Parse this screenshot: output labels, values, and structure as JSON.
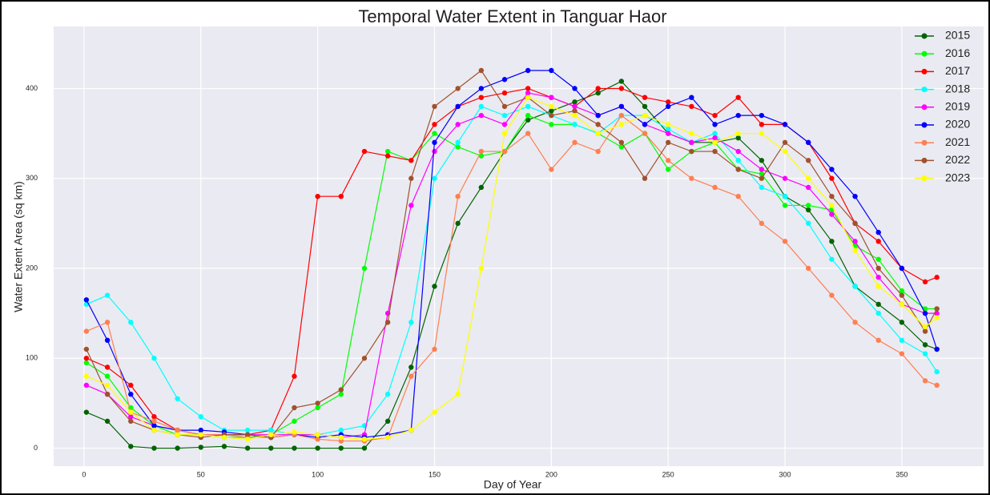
{
  "chart_data": {
    "type": "line",
    "title": "Temporal Water Extent in Tanguar Haor",
    "x_label": "Day of Year",
    "y_label": "Water Extent Area (sq km)",
    "x": [
      1,
      10,
      20,
      30,
      40,
      50,
      60,
      70,
      80,
      90,
      100,
      110,
      120,
      130,
      140,
      150,
      160,
      170,
      180,
      190,
      200,
      210,
      220,
      230,
      240,
      250,
      260,
      270,
      280,
      290,
      300,
      310,
      320,
      330,
      340,
      350,
      360,
      365
    ],
    "xlim": [
      -13,
      385
    ],
    "xticks": [
      0,
      50,
      100,
      150,
      200,
      250,
      300,
      350
    ],
    "ylim": [
      -20,
      469
    ],
    "yticks": [
      0,
      100,
      200,
      300,
      400
    ],
    "grid": true,
    "legend": "upper right",
    "series": [
      {
        "name": "2015",
        "color": "#006400",
        "values": [
          40,
          30,
          2,
          0,
          0,
          1,
          2,
          0,
          0,
          0,
          0,
          0,
          0,
          30,
          90,
          180,
          250,
          290,
          330,
          365,
          375,
          385,
          395,
          408,
          380,
          350,
          340,
          340,
          345,
          320,
          280,
          265,
          230,
          180,
          160,
          140,
          115,
          110
        ]
      },
      {
        "name": "2016",
        "color": "#00ff00",
        "values": [
          95,
          80,
          45,
          25,
          15,
          15,
          12,
          12,
          15,
          30,
          45,
          60,
          200,
          330,
          320,
          350,
          335,
          325,
          330,
          370,
          360,
          360,
          350,
          335,
          350,
          310,
          330,
          340,
          310,
          305,
          270,
          270,
          265,
          225,
          210,
          175,
          155,
          155
        ]
      },
      {
        "name": "2017",
        "color": "#ff0000",
        "values": [
          100,
          90,
          70,
          35,
          20,
          15,
          15,
          15,
          20,
          80,
          280,
          280,
          330,
          325,
          320,
          360,
          380,
          390,
          395,
          400,
          390,
          380,
          400,
          400,
          390,
          385,
          380,
          370,
          390,
          360,
          360,
          340,
          300,
          250,
          230,
          200,
          185,
          190
        ]
      },
      {
        "name": "2018",
        "color": "#00ffff",
        "values": [
          160,
          170,
          140,
          100,
          55,
          35,
          20,
          20,
          20,
          15,
          15,
          20,
          25,
          60,
          140,
          300,
          340,
          380,
          370,
          380,
          370,
          360,
          350,
          370,
          370,
          355,
          340,
          350,
          320,
          290,
          280,
          250,
          210,
          180,
          150,
          120,
          105,
          85
        ]
      },
      {
        "name": "2019",
        "color": "#ff00ff",
        "values": [
          70,
          60,
          35,
          25,
          20,
          15,
          15,
          15,
          15,
          15,
          15,
          12,
          15,
          150,
          270,
          330,
          360,
          370,
          360,
          395,
          390,
          380,
          370,
          380,
          360,
          350,
          340,
          345,
          330,
          310,
          300,
          290,
          260,
          230,
          190,
          160,
          150,
          150
        ]
      },
      {
        "name": "2020",
        "color": "#0000ff",
        "values": [
          165,
          120,
          60,
          25,
          20,
          20,
          18,
          15,
          12,
          15,
          12,
          15,
          12,
          15,
          20,
          340,
          380,
          400,
          410,
          420,
          420,
          400,
          370,
          380,
          360,
          380,
          390,
          360,
          370,
          370,
          360,
          340,
          310,
          280,
          240,
          200,
          150,
          110
        ]
      },
      {
        "name": "2021",
        "color": "#ff7f50",
        "values": [
          130,
          140,
          40,
          30,
          20,
          15,
          15,
          12,
          12,
          15,
          10,
          8,
          8,
          12,
          80,
          110,
          280,
          330,
          330,
          350,
          310,
          340,
          330,
          370,
          350,
          320,
          300,
          290,
          280,
          250,
          230,
          200,
          170,
          140,
          120,
          105,
          75,
          70
        ]
      },
      {
        "name": "2022",
        "color": "#a0522d",
        "values": [
          110,
          60,
          30,
          20,
          15,
          12,
          15,
          15,
          12,
          45,
          50,
          65,
          100,
          140,
          300,
          380,
          400,
          420,
          380,
          390,
          370,
          375,
          360,
          340,
          300,
          340,
          330,
          330,
          310,
          300,
          340,
          320,
          280,
          250,
          200,
          170,
          130,
          155
        ]
      },
      {
        "name": "2023",
        "color": "#ffff00",
        "values": [
          80,
          70,
          40,
          20,
          15,
          15,
          12,
          10,
          15,
          18,
          15,
          12,
          10,
          12,
          20,
          40,
          60,
          200,
          350,
          390,
          380,
          370,
          350,
          360,
          370,
          360,
          350,
          340,
          350,
          350,
          330,
          300,
          270,
          220,
          180,
          160,
          135,
          145
        ]
      }
    ]
  }
}
